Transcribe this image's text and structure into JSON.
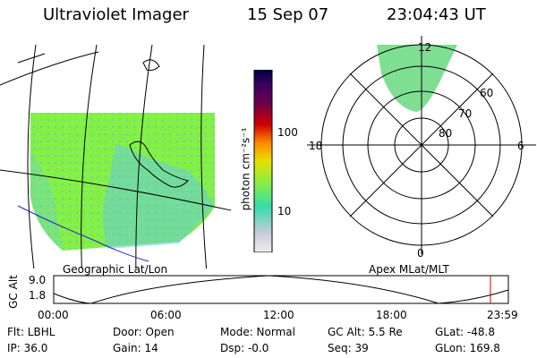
{
  "header": {
    "instrument": "Ultraviolet Imager",
    "date": "15 Sep 07",
    "time": "23:04:43 UT"
  },
  "map_panel": {
    "caption": "Geographic Lat/Lon"
  },
  "polar_panel": {
    "caption": "Apex MLat/MLT",
    "mlt_labels": {
      "top": "12",
      "left": "18",
      "right": "6",
      "bottom": "0"
    },
    "lat_labels": [
      "60",
      "70",
      "80"
    ]
  },
  "colorbar": {
    "unit_label": "photon cm⁻²s⁻¹",
    "tick_labels": [
      "100",
      "10"
    ],
    "colors": [
      "#000040",
      "#3a0060",
      "#6a0050",
      "#a00020",
      "#d00000",
      "#ff4000",
      "#ff8a00",
      "#ffb000",
      "#e6e000",
      "#c0ff00",
      "#66ff44",
      "#33ddaa",
      "#66ccdd",
      "#ccccdd",
      "#eeeeee"
    ]
  },
  "orbit": {
    "axis_title": "GC Alt",
    "y_ticks": [
      "9.0",
      "1.8"
    ],
    "x_ticks": [
      "00:00",
      "06:00",
      "12:00",
      "18:00",
      "23:59"
    ],
    "marker_color": "#cc0000"
  },
  "footer": {
    "flt": "Flt: LBHL",
    "ip": "IP: 36.0",
    "door": "Door: Open",
    "gain": "Gain: 14",
    "mode": "Mode: Normal",
    "dsp": "Dsp:  -0.0",
    "gc_alt": "GC Alt: 5.5 Re",
    "seq": "Seq: 39",
    "glat": "GLat: -48.8",
    "glon": "GLon: 169.8"
  }
}
